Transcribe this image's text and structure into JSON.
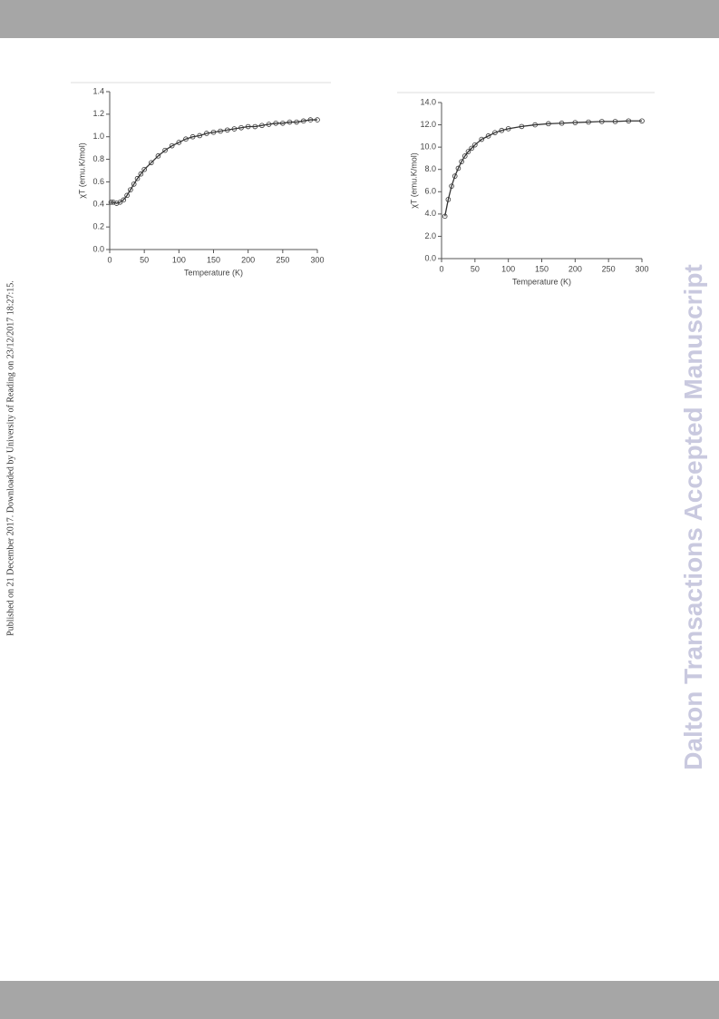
{
  "side_note": "Published on 21 December 2017. Downloaded by University of Reading on 23/12/2017 18:27:15.",
  "watermark": "Dalton Transactions Accepted Manuscript",
  "chart_data": [
    {
      "type": "scatter",
      "xlabel": "Temperature (K)",
      "ylabel": "χT (emu.K/mol)",
      "x": [
        2,
        5,
        10,
        15,
        20,
        25,
        30,
        35,
        40,
        45,
        50,
        60,
        70,
        80,
        90,
        100,
        110,
        120,
        130,
        140,
        150,
        160,
        170,
        180,
        190,
        200,
        210,
        220,
        230,
        240,
        250,
        260,
        270,
        280,
        290,
        300
      ],
      "values": [
        0.42,
        0.42,
        0.41,
        0.42,
        0.44,
        0.48,
        0.53,
        0.58,
        0.63,
        0.67,
        0.71,
        0.77,
        0.83,
        0.88,
        0.92,
        0.95,
        0.98,
        1.0,
        1.01,
        1.03,
        1.04,
        1.05,
        1.06,
        1.07,
        1.08,
        1.09,
        1.09,
        1.1,
        1.11,
        1.12,
        1.12,
        1.13,
        1.13,
        1.14,
        1.15,
        1.15
      ],
      "color": "#333333",
      "xlim": [
        0,
        300
      ],
      "xticks": [
        0,
        50,
        100,
        150,
        200,
        250,
        300
      ],
      "ylim": [
        0,
        1.4
      ],
      "yticks": [
        {
          "value": 0,
          "label": "0.0"
        },
        0.2,
        0.4,
        0.6,
        0.8,
        {
          "value": 1,
          "label": "1.0"
        },
        1.2,
        1.4
      ]
    },
    {
      "type": "scatter",
      "xlabel": "Temperature (K)",
      "ylabel": "χT (emu.K/mol)",
      "x": [
        5,
        10,
        15,
        20,
        25,
        30,
        35,
        40,
        45,
        50,
        60,
        70,
        80,
        90,
        100,
        120,
        140,
        160,
        180,
        200,
        220,
        240,
        260,
        280,
        300
      ],
      "values": [
        3.8,
        5.3,
        6.5,
        7.4,
        8.1,
        8.7,
        9.2,
        9.6,
        9.9,
        10.2,
        10.7,
        11.0,
        11.3,
        11.5,
        11.65,
        11.85,
        12.0,
        12.1,
        12.15,
        12.2,
        12.25,
        12.3,
        12.3,
        12.35,
        12.35
      ],
      "color": "#333333",
      "xlim": [
        0,
        300
      ],
      "xticks": [
        0,
        50,
        100,
        150,
        200,
        250,
        300
      ],
      "ylim": [
        0,
        14
      ],
      "yticks": [
        {
          "value": 0,
          "label": "0.0"
        },
        {
          "value": 2,
          "label": "2.0"
        },
        {
          "value": 4,
          "label": "4.0"
        },
        {
          "value": 6,
          "label": "6.0"
        },
        {
          "value": 8,
          "label": "8.0"
        },
        {
          "value": 10,
          "label": "10.0"
        },
        {
          "value": 12,
          "label": "12.0"
        },
        {
          "value": 14,
          "label": "14.0"
        }
      ]
    }
  ]
}
